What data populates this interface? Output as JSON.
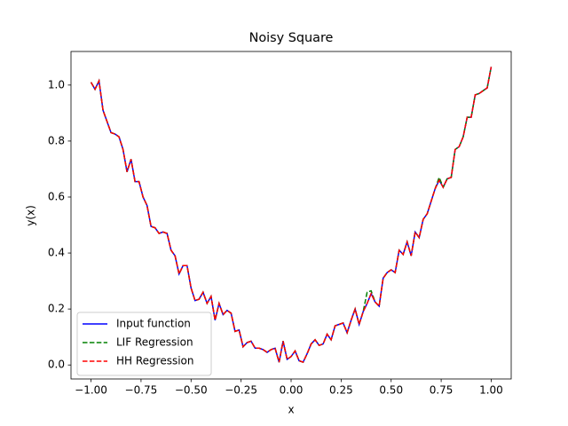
{
  "chart_data": {
    "type": "line",
    "title": "Noisy Square",
    "xlabel": "x",
    "ylabel": "y(x)",
    "x": [
      -1,
      -0.98,
      -0.96,
      -0.94,
      -0.92,
      -0.9,
      -0.88,
      -0.86,
      -0.84,
      -0.82,
      -0.8,
      -0.78,
      -0.76,
      -0.74,
      -0.72,
      -0.7,
      -0.68,
      -0.66,
      -0.64,
      -0.62,
      -0.6,
      -0.58,
      -0.56,
      -0.54,
      -0.52,
      -0.5,
      -0.48,
      -0.46,
      -0.44,
      -0.42,
      -0.4,
      -0.38,
      -0.36,
      -0.34,
      -0.32,
      -0.3,
      -0.28,
      -0.26,
      -0.24,
      -0.22,
      -0.2,
      -0.18,
      -0.16,
      -0.14,
      -0.12,
      -0.1,
      -0.08,
      -0.06,
      -0.04,
      -0.02,
      0,
      0.02,
      0.04,
      0.06,
      0.08,
      0.1,
      0.12,
      0.14,
      0.16,
      0.18,
      0.2,
      0.22,
      0.24,
      0.26,
      0.28,
      0.3,
      0.32,
      0.34,
      0.36,
      0.38,
      0.4,
      0.42,
      0.44,
      0.46,
      0.48,
      0.5,
      0.52,
      0.54,
      0.56,
      0.58,
      0.6,
      0.62,
      0.64,
      0.66,
      0.68,
      0.7,
      0.72,
      0.74,
      0.76,
      0.78,
      0.8,
      0.82,
      0.84,
      0.86,
      0.88,
      0.9,
      0.92,
      0.94,
      0.96,
      0.98,
      1
    ],
    "series": [
      {
        "name": "Input function",
        "color": "#0000ff",
        "linestyle": "solid",
        "values": [
          1.01,
          0.985,
          1.015,
          0.91,
          0.87,
          0.83,
          0.825,
          0.815,
          0.77,
          0.69,
          0.735,
          0.655,
          0.655,
          0.6,
          0.57,
          0.495,
          0.49,
          0.47,
          0.475,
          0.47,
          0.41,
          0.39,
          0.325,
          0.355,
          0.355,
          0.275,
          0.23,
          0.235,
          0.26,
          0.22,
          0.245,
          0.16,
          0.22,
          0.18,
          0.195,
          0.185,
          0.12,
          0.125,
          0.065,
          0.08,
          0.085,
          0.06,
          0.06,
          0.055,
          0.045,
          0.055,
          0.06,
          0.01,
          0.085,
          0.02,
          0.03,
          0.05,
          0.015,
          0.01,
          0.04,
          0.075,
          0.09,
          0.07,
          0.075,
          0.11,
          0.09,
          0.14,
          0.145,
          0.15,
          0.115,
          0.16,
          0.2,
          0.145,
          0.19,
          0.22,
          0.255,
          0.225,
          0.21,
          0.31,
          0.33,
          0.34,
          0.33,
          0.41,
          0.395,
          0.44,
          0.39,
          0.475,
          0.455,
          0.52,
          0.54,
          0.585,
          0.63,
          0.66,
          0.635,
          0.665,
          0.67,
          0.77,
          0.78,
          0.815,
          0.885,
          0.885,
          0.965,
          0.97,
          0.98,
          0.99,
          1.065
        ]
      },
      {
        "name": "LIF Regression",
        "color": "#008000",
        "linestyle": "dashed",
        "values": [
          1.01,
          0.985,
          1.015,
          0.91,
          0.87,
          0.83,
          0.825,
          0.815,
          0.77,
          0.69,
          0.735,
          0.655,
          0.655,
          0.6,
          0.57,
          0.495,
          0.49,
          0.47,
          0.475,
          0.47,
          0.41,
          0.39,
          0.325,
          0.355,
          0.355,
          0.275,
          0.23,
          0.235,
          0.26,
          0.22,
          0.245,
          0.16,
          0.22,
          0.18,
          0.195,
          0.185,
          0.12,
          0.125,
          0.065,
          0.08,
          0.085,
          0.06,
          0.06,
          0.055,
          0.045,
          0.055,
          0.06,
          0.01,
          0.085,
          0.02,
          0.03,
          0.05,
          0.015,
          0.01,
          0.04,
          0.075,
          0.09,
          0.07,
          0.075,
          0.11,
          0.09,
          0.14,
          0.145,
          0.15,
          0.115,
          0.16,
          0.2,
          0.145,
          0.19,
          0.26,
          0.265,
          0.225,
          0.21,
          0.31,
          0.33,
          0.34,
          0.33,
          0.41,
          0.395,
          0.44,
          0.39,
          0.475,
          0.455,
          0.52,
          0.54,
          0.585,
          0.63,
          0.67,
          0.635,
          0.665,
          0.67,
          0.77,
          0.78,
          0.815,
          0.885,
          0.885,
          0.965,
          0.97,
          0.98,
          0.99,
          1.065
        ]
      },
      {
        "name": "HH Regression",
        "color": "#ff0000",
        "linestyle": "dashed",
        "values": [
          1.01,
          0.985,
          1.015,
          0.91,
          0.87,
          0.83,
          0.825,
          0.815,
          0.77,
          0.69,
          0.735,
          0.655,
          0.655,
          0.6,
          0.57,
          0.495,
          0.49,
          0.47,
          0.475,
          0.47,
          0.41,
          0.39,
          0.325,
          0.355,
          0.355,
          0.275,
          0.23,
          0.235,
          0.26,
          0.22,
          0.245,
          0.16,
          0.22,
          0.18,
          0.195,
          0.185,
          0.12,
          0.125,
          0.065,
          0.08,
          0.085,
          0.06,
          0.06,
          0.055,
          0.045,
          0.055,
          0.06,
          0.01,
          0.085,
          0.02,
          0.03,
          0.05,
          0.015,
          0.01,
          0.04,
          0.075,
          0.09,
          0.07,
          0.075,
          0.11,
          0.09,
          0.14,
          0.145,
          0.15,
          0.115,
          0.16,
          0.2,
          0.145,
          0.19,
          0.22,
          0.255,
          0.225,
          0.21,
          0.31,
          0.33,
          0.34,
          0.33,
          0.41,
          0.395,
          0.44,
          0.39,
          0.475,
          0.455,
          0.52,
          0.54,
          0.585,
          0.63,
          0.66,
          0.635,
          0.665,
          0.67,
          0.77,
          0.78,
          0.815,
          0.885,
          0.885,
          0.965,
          0.97,
          0.98,
          0.99,
          1.065
        ]
      }
    ],
    "xlim": [
      -1.1,
      1.1
    ],
    "ylim": [
      -0.05,
      1.12
    ],
    "xticks": [
      {
        "value": -1,
        "label": "−1.00"
      },
      {
        "value": -0.75,
        "label": "−0.75"
      },
      {
        "value": -0.5,
        "label": "−0.50"
      },
      {
        "value": -0.25,
        "label": "−0.25"
      },
      {
        "value": 0,
        "label": "0.00"
      },
      {
        "value": 0.25,
        "label": "0.25"
      },
      {
        "value": 0.5,
        "label": "0.50"
      },
      {
        "value": 0.75,
        "label": "0.75"
      },
      {
        "value": 1,
        "label": "1.00"
      }
    ],
    "yticks": [
      {
        "value": 0,
        "label": "0.0"
      },
      {
        "value": 0.2,
        "label": "0.2"
      },
      {
        "value": 0.4,
        "label": "0.4"
      },
      {
        "value": 0.6,
        "label": "0.6"
      },
      {
        "value": 0.8,
        "label": "0.8"
      },
      {
        "value": 1,
        "label": "1.0"
      }
    ],
    "grid": false,
    "legend": "lower left"
  }
}
